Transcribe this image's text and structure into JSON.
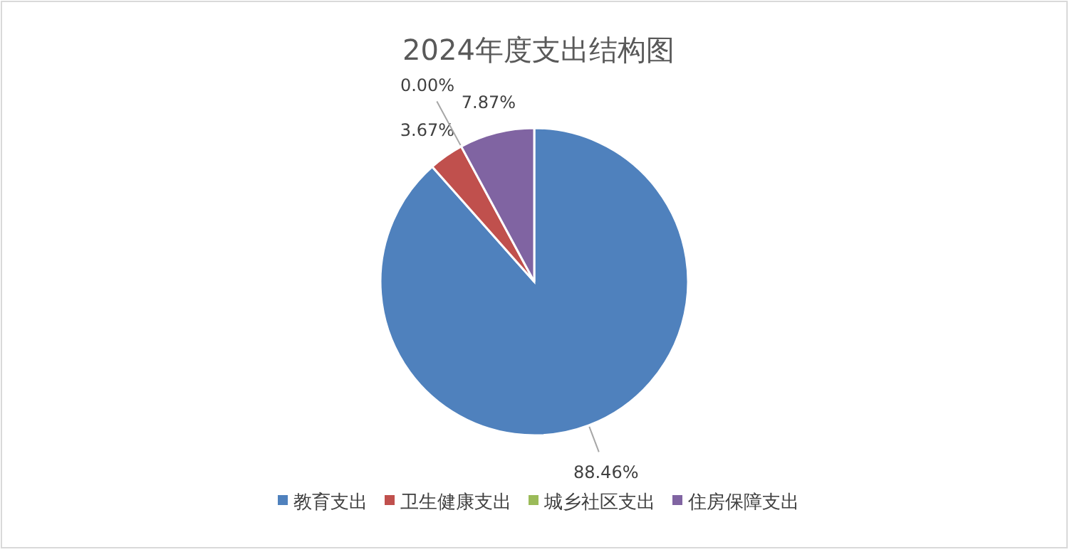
{
  "chart_data": {
    "type": "pie",
    "title": "2024年度支出结构图",
    "categories": [
      "教育支出",
      "卫生健康支出",
      "城乡社区支出",
      "住房保障支出"
    ],
    "values": [
      88.46,
      3.67,
      0.0,
      7.87
    ],
    "colors": [
      "#4f81bd",
      "#c0504d",
      "#9bbb59",
      "#8064a2"
    ],
    "value_labels": [
      "88.46%",
      "3.67%",
      "0.00%",
      "7.87%"
    ],
    "legend": "bottom"
  }
}
